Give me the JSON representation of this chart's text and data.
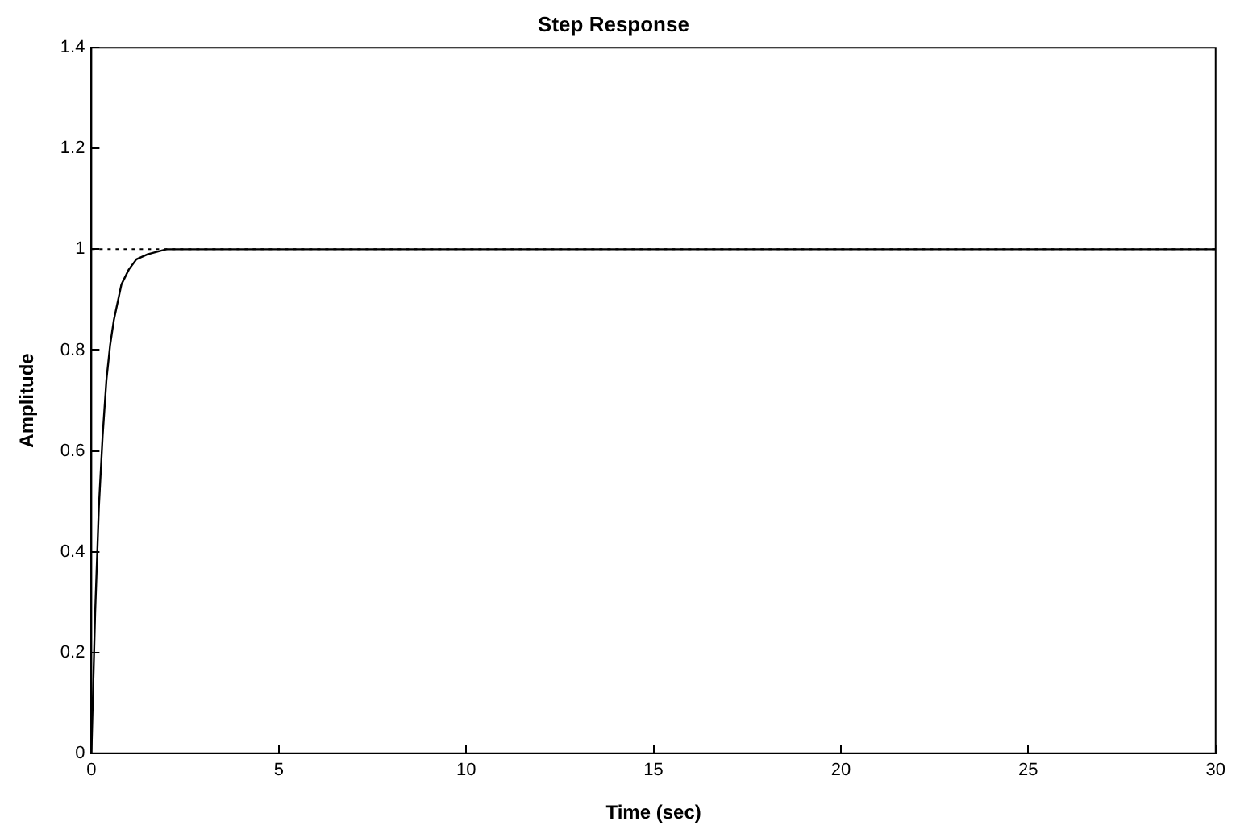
{
  "chart_data": {
    "type": "line",
    "title": "Step Response",
    "xlabel": "Time (sec)",
    "ylabel": "Amplitude",
    "x": [
      0,
      0.1,
      0.2,
      0.3,
      0.4,
      0.5,
      0.6,
      0.8,
      1,
      1.2,
      1.5,
      2,
      30
    ],
    "series": [
      {
        "color": "#000000",
        "values": [
          0,
          0.28,
          0.49,
          0.63,
          0.74,
          0.81,
          0.86,
          0.93,
          0.96,
          0.98,
          0.99,
          1,
          1
        ]
      }
    ],
    "xlim": [
      0,
      30
    ],
    "xticks": [
      0,
      5,
      10,
      15,
      20,
      25,
      30
    ],
    "ylim": [
      0,
      1.4
    ],
    "yticks": [
      0,
      0.2,
      0.4,
      0.6,
      0.8,
      1,
      1.2,
      1.4
    ],
    "ref_lines": [
      {
        "axis": "y",
        "value": 1,
        "color": "#000000",
        "line_style": "dotted"
      }
    ],
    "grid": false,
    "legend": false,
    "marker": "none",
    "line_style": "solid"
  }
}
